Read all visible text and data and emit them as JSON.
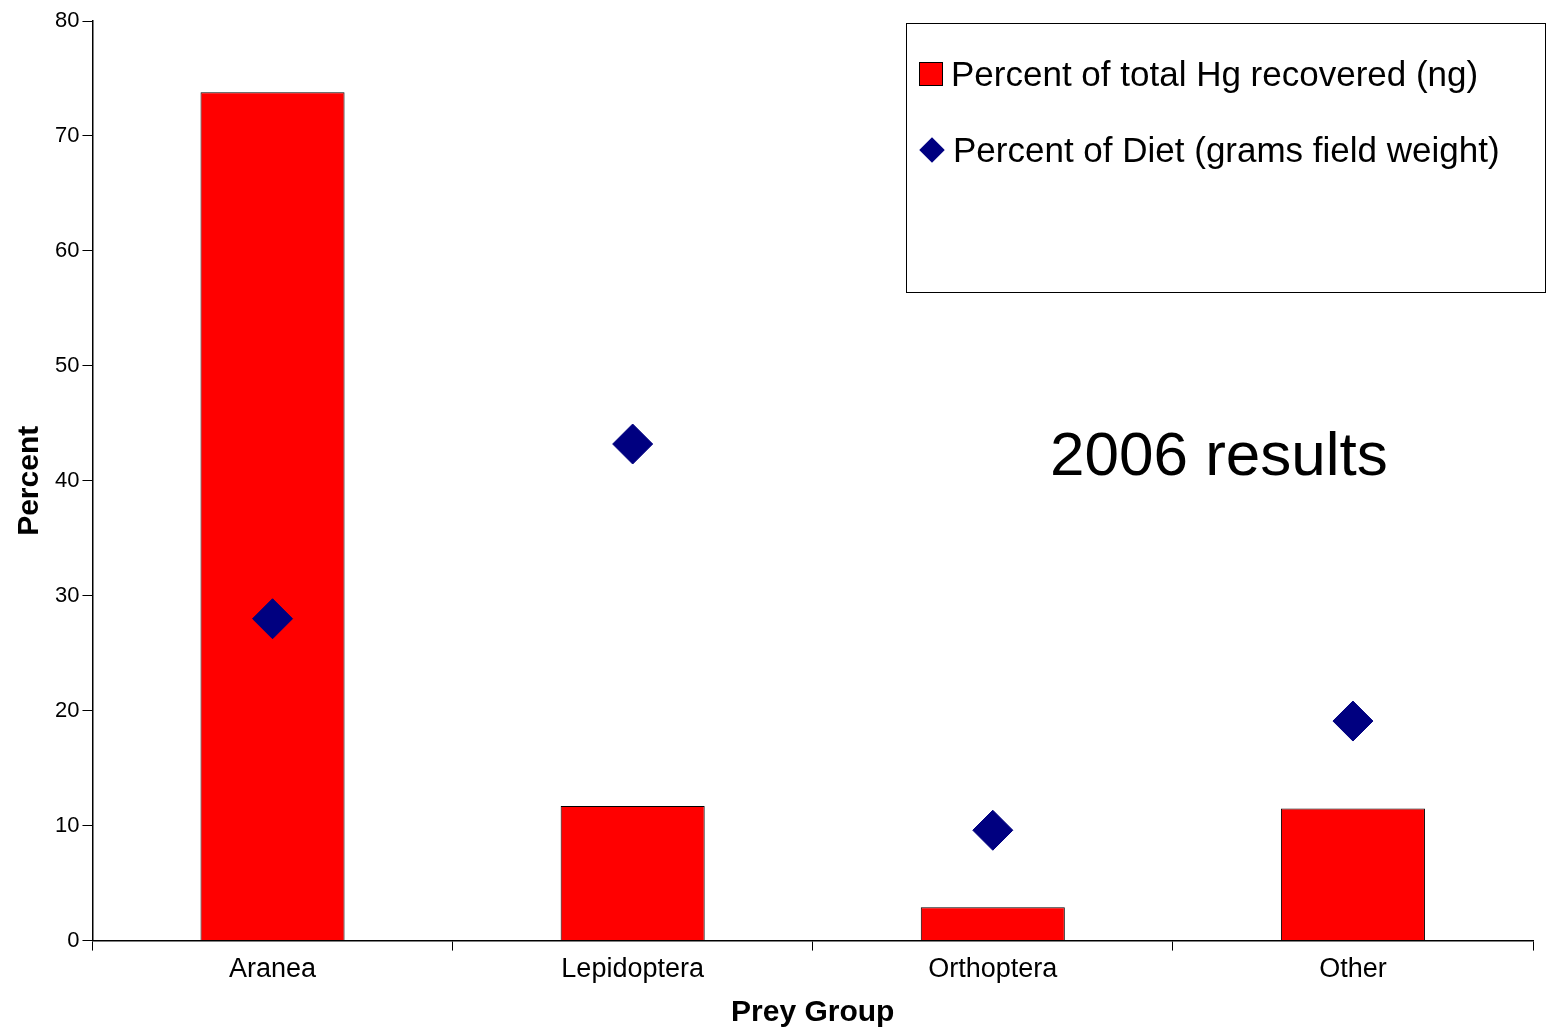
{
  "chart_data": {
    "type": "bar",
    "xlabel": "Prey Group",
    "ylabel": "Percent",
    "categories": [
      "Aranea",
      "Lepidoptera",
      "Orthoptera",
      "Other"
    ],
    "series": [
      {
        "name": "Percent of total Hg recovered (ng)",
        "color": "#ff0000",
        "values": [
          73.8,
          11.7,
          2.9,
          11.5
        ]
      },
      {
        "name": "Percent of Diet (grams field weight)",
        "type": "scatter",
        "color": "#000080",
        "marker": "diamond",
        "x": [
          "Aranea",
          "Lepidoptera",
          "Orthoptera",
          "Other"
        ],
        "values": [
          28.0,
          43.2,
          9.6,
          19.1
        ]
      }
    ],
    "ylim": [
      0,
      80
    ],
    "yticks": [
      0,
      10,
      20,
      30,
      40,
      50,
      60,
      70,
      80
    ],
    "grid": false,
    "legend": "top right",
    "annotations": [
      "2006 results"
    ]
  }
}
